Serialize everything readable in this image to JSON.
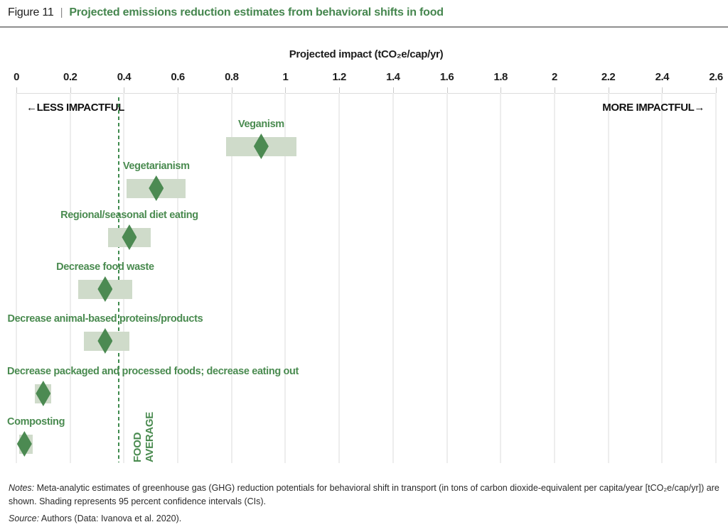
{
  "header": {
    "figure_label": "Figure 11",
    "separator": "|",
    "title": "Projected emissions reduction estimates from behavioral shifts in food"
  },
  "chart_data": {
    "type": "scatter",
    "title": "Projected emissions reduction estimates from behavioral shifts in food",
    "xlabel": "Projected impact (tCO₂e/cap/yr)",
    "ylabel": "",
    "xlim": [
      0,
      2.6
    ],
    "grid": true,
    "x_ticks": [
      0,
      0.2,
      0.4,
      0.6,
      0.8,
      1,
      1.2,
      1.4,
      1.6,
      1.8,
      2,
      2.2,
      2.4,
      2.6
    ],
    "x_tick_labels": [
      "0",
      "0.2",
      "0.4",
      "0.6",
      "0.8",
      "1",
      "1.2",
      "1.4",
      "1.6",
      "1.8",
      "2",
      "2.2",
      "2.4",
      "2.6"
    ],
    "annotations": {
      "left": "←LESS IMPACTFUL",
      "right": "MORE IMPACTFUL→"
    },
    "reference_line": {
      "value": 0.38,
      "label_line1": "FOOD",
      "label_line2": "AVERAGE"
    },
    "rows": [
      {
        "label": "Veganism",
        "value": 0.91,
        "ci": [
          0.78,
          1.04
        ]
      },
      {
        "label": "Vegetarianism",
        "value": 0.52,
        "ci": [
          0.41,
          0.63
        ]
      },
      {
        "label": "Regional/seasonal diet eating",
        "value": 0.42,
        "ci": [
          0.34,
          0.5
        ]
      },
      {
        "label": "Decrease food waste",
        "value": 0.33,
        "ci": [
          0.23,
          0.43
        ]
      },
      {
        "label": "Decrease animal-based proteins/products",
        "value": 0.33,
        "ci": [
          0.25,
          0.42
        ]
      },
      {
        "label": "Decrease packaged and processed foods; decrease eating out",
        "value": 0.1,
        "ci": [
          0.07,
          0.13
        ]
      },
      {
        "label": "Composting",
        "value": 0.03,
        "ci": [
          0.01,
          0.06
        ]
      }
    ],
    "colors": {
      "accent_green": "#4a8b50",
      "band": "#cfdbca",
      "diamond": "#4c8a52",
      "dashed_line": "#3e8a4d",
      "grid": "#ededed"
    }
  },
  "footer": {
    "notes_label": "Notes:",
    "notes_text": " Meta-analytic estimates of greenhouse gas (GHG) reduction potentials for behavioral shift in transport (in tons of carbon dioxide-equivalent per capita/year [tCO₂e/cap/yr]) are shown. Shading represents 95 percent confidence intervals (CIs).",
    "source_label": "Source:",
    "source_text": " Authors (Data: Ivanova et al. 2020)."
  }
}
